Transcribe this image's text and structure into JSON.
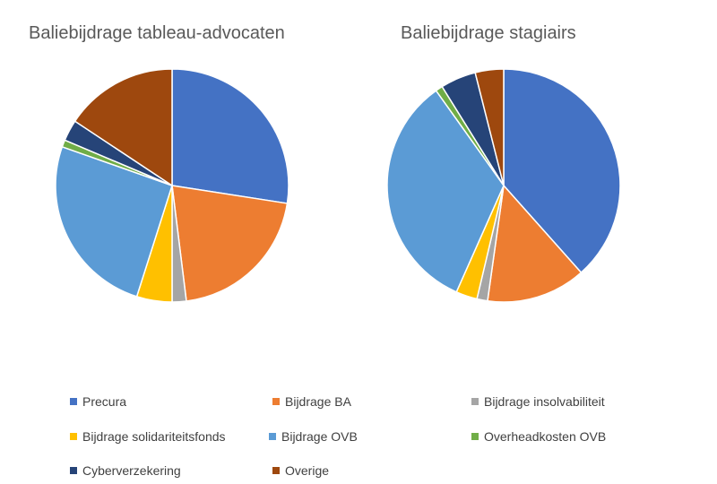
{
  "chart_data": [
    {
      "type": "pie",
      "title": "Baliebijdrage tableau-advocaten",
      "categories": [
        "Precura",
        "Bijdrage BA",
        "Bijdrage insolvabiliteit",
        "Bijdrage solidariteitsfonds",
        "Bijdrage OVB",
        "Overheadkosten OVB",
        "Cyberverzekering",
        "Overige"
      ],
      "values": [
        28,
        21,
        2,
        5,
        26,
        1,
        3,
        16
      ]
    },
    {
      "type": "pie",
      "title": "Baliebijdrage stagiairs",
      "categories": [
        "Precura",
        "Bijdrage BA",
        "Bijdrage insolvabiliteit",
        "Bijdrage solidariteitsfonds",
        "Bijdrage OVB",
        "Overheadkosten OVB",
        "Cyberverzekering",
        "Overige"
      ],
      "values": [
        39,
        14,
        1.5,
        3,
        34,
        1,
        5,
        4
      ]
    }
  ],
  "legend": [
    {
      "label": "Precura",
      "color": "#4472C4"
    },
    {
      "label": "Bijdrage BA",
      "color": "#ED7D31"
    },
    {
      "label": "Bijdrage insolvabiliteit",
      "color": "#A5A5A5"
    },
    {
      "label": "Bijdrage solidariteitsfonds",
      "color": "#FFC000"
    },
    {
      "label": "Bijdrage OVB",
      "color": "#5B9BD5"
    },
    {
      "label": "Overheadkosten OVB",
      "color": "#70AD47"
    },
    {
      "label": "Cyberverzekering",
      "color": "#264478"
    },
    {
      "label": "Overige",
      "color": "#9E480E"
    }
  ]
}
